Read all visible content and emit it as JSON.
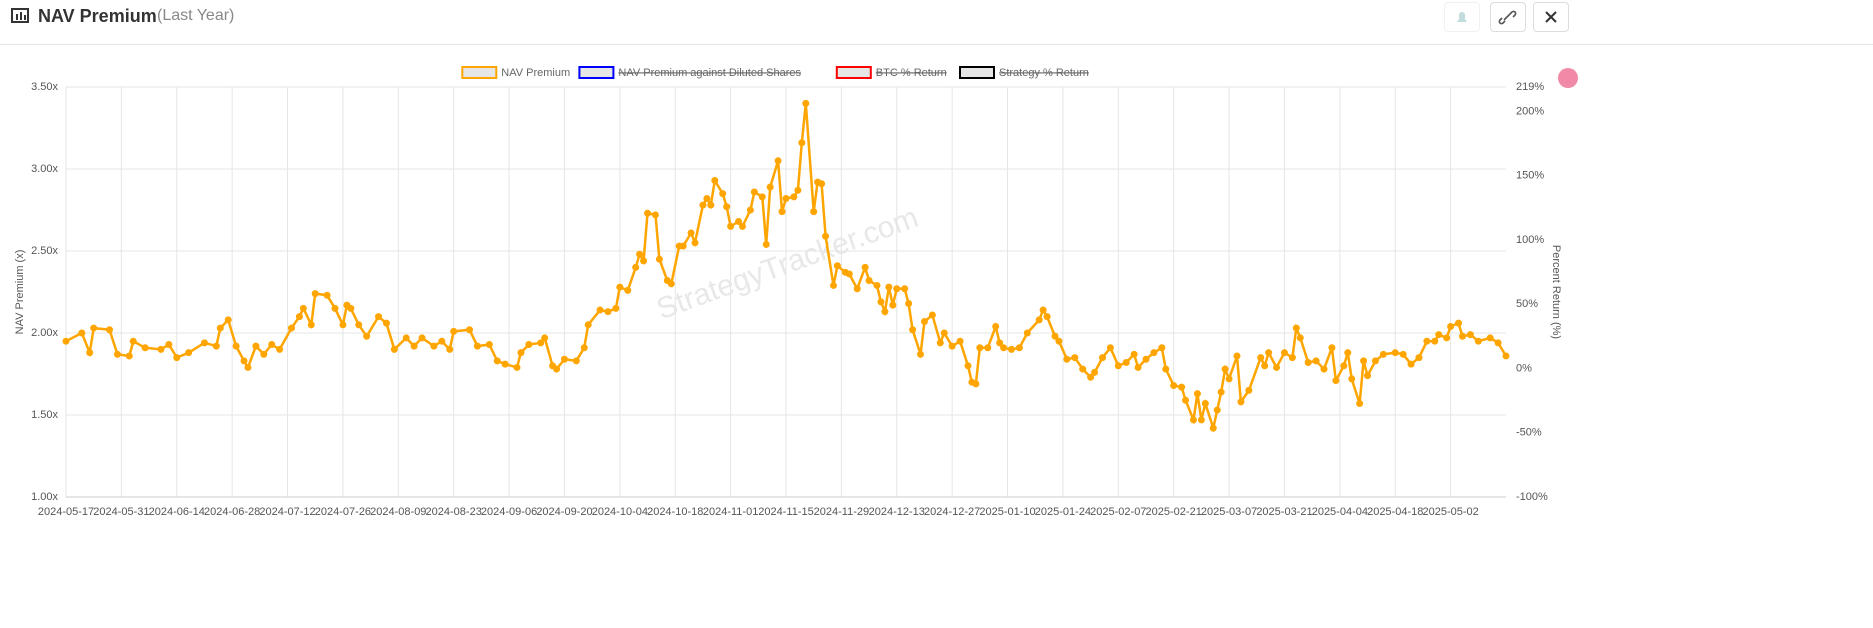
{
  "header": {
    "title": "NAV Premium",
    "subtitle": "(Last Year)"
  },
  "chart_data": {
    "type": "line",
    "watermark": "StrategyTracker.com",
    "y_label": "NAV Premium (x)",
    "y2_label": "Percent Return (%)",
    "xlim": [
      "2024-05-17",
      "2025-05-16"
    ],
    "xticks": [
      "2024-05-17",
      "2024-05-31",
      "2024-06-14",
      "2024-06-28",
      "2024-07-12",
      "2024-07-26",
      "2024-08-09",
      "2024-08-23",
      "2024-09-06",
      "2024-09-20",
      "2024-10-04",
      "2024-10-18",
      "2024-11-01",
      "2024-11-15",
      "2024-11-29",
      "2024-12-13",
      "2024-12-27",
      "2025-01-10",
      "2025-01-24",
      "2025-02-07",
      "2025-02-21",
      "2025-03-07",
      "2025-03-21",
      "2025-04-04",
      "2025-04-18",
      "2025-05-02"
    ],
    "ylim": [
      1,
      3.5
    ],
    "yticks": [
      {
        "value": 1,
        "label": "1.00x"
      },
      {
        "value": 1.5,
        "label": "1.50x"
      },
      {
        "value": 2,
        "label": "2.00x"
      },
      {
        "value": 2.5,
        "label": "2.50x"
      },
      {
        "value": 3,
        "label": "3.00x"
      },
      {
        "value": 3.5,
        "label": "3.50x"
      }
    ],
    "y2lim": [
      -100,
      219
    ],
    "y2ticks": [
      {
        "value": -100,
        "label": "-100%"
      },
      {
        "value": -50,
        "label": "-50%"
      },
      {
        "value": 0,
        "label": "0%"
      },
      {
        "value": 50,
        "label": "50%"
      },
      {
        "value": 100,
        "label": "100%"
      },
      {
        "value": 150,
        "label": "150%"
      },
      {
        "value": 200,
        "label": "200%"
      },
      {
        "value": 219,
        "label": "219%"
      }
    ],
    "grid": true,
    "legend": "top",
    "x": [
      "2024-05-17",
      "2024-05-21",
      "2024-05-23",
      "2024-05-24",
      "2024-05-28",
      "2024-05-30",
      "2024-06-02",
      "2024-06-03",
      "2024-06-06",
      "2024-06-10",
      "2024-06-12",
      "2024-06-14",
      "2024-06-17",
      "2024-06-21",
      "2024-06-24",
      "2024-06-25",
      "2024-06-27",
      "2024-06-29",
      "2024-07-01",
      "2024-07-02",
      "2024-07-04",
      "2024-07-06",
      "2024-07-08",
      "2024-07-10",
      "2024-07-13",
      "2024-07-15",
      "2024-07-16",
      "2024-07-18",
      "2024-07-19",
      "2024-07-22",
      "2024-07-24",
      "2024-07-26",
      "2024-07-27",
      "2024-07-28",
      "2024-07-30",
      "2024-08-01",
      "2024-08-04",
      "2024-08-06",
      "2024-08-08",
      "2024-08-11",
      "2024-08-13",
      "2024-08-15",
      "2024-08-18",
      "2024-08-20",
      "2024-08-22",
      "2024-08-23",
      "2024-08-27",
      "2024-08-29",
      "2024-09-01",
      "2024-09-03",
      "2024-09-05",
      "2024-09-08",
      "2024-09-09",
      "2024-09-11",
      "2024-09-14",
      "2024-09-15",
      "2024-09-17",
      "2024-09-18",
      "2024-09-20",
      "2024-09-23",
      "2024-09-25",
      "2024-09-26",
      "2024-09-29",
      "2024-10-01",
      "2024-10-03",
      "2024-10-04",
      "2024-10-06",
      "2024-10-08",
      "2024-10-09",
      "2024-10-10",
      "2024-10-11",
      "2024-10-13",
      "2024-10-14",
      "2024-10-16",
      "2024-10-17",
      "2024-10-19",
      "2024-10-20",
      "2024-10-22",
      "2024-10-23",
      "2024-10-25",
      "2024-10-26",
      "2024-10-27",
      "2024-10-28",
      "2024-10-30",
      "2024-10-31",
      "2024-11-01",
      "2024-11-03",
      "2024-11-04",
      "2024-11-06",
      "2024-11-07",
      "2024-11-09",
      "2024-11-10",
      "2024-11-11",
      "2024-11-13",
      "2024-11-14",
      "2024-11-15",
      "2024-11-17",
      "2024-11-18",
      "2024-11-19",
      "2024-11-20",
      "2024-11-22",
      "2024-11-23",
      "2024-11-24",
      "2024-11-25",
      "2024-11-27",
      "2024-11-28",
      "2024-11-30",
      "2024-12-01",
      "2024-12-03",
      "2024-12-05",
      "2024-12-06",
      "2024-12-08",
      "2024-12-09",
      "2024-12-10",
      "2024-12-11",
      "2024-12-12",
      "2024-12-13",
      "2024-12-15",
      "2024-12-16",
      "2024-12-17",
      "2024-12-19",
      "2024-12-20",
      "2024-12-22",
      "2024-12-24",
      "2024-12-25",
      "2024-12-27",
      "2024-12-29",
      "2024-12-31",
      "2025-01-01",
      "2025-01-02",
      "2025-01-03",
      "2025-01-05",
      "2025-01-07",
      "2025-01-08",
      "2025-01-09",
      "2025-01-11",
      "2025-01-13",
      "2025-01-15",
      "2025-01-18",
      "2025-01-19",
      "2025-01-20",
      "2025-01-22",
      "2025-01-23",
      "2025-01-25",
      "2025-01-27",
      "2025-01-29",
      "2025-01-31",
      "2025-02-01",
      "2025-02-03",
      "2025-02-05",
      "2025-02-07",
      "2025-02-09",
      "2025-02-11",
      "2025-02-12",
      "2025-02-14",
      "2025-02-16",
      "2025-02-18",
      "2025-02-19",
      "2025-02-21",
      "2025-02-23",
      "2025-02-24",
      "2025-02-26",
      "2025-02-27",
      "2025-02-28",
      "2025-03-01",
      "2025-03-03",
      "2025-03-04",
      "2025-03-05",
      "2025-03-06",
      "2025-03-07",
      "2025-03-09",
      "2025-03-10",
      "2025-03-12",
      "2025-03-15",
      "2025-03-16",
      "2025-03-17",
      "2025-03-19",
      "2025-03-21",
      "2025-03-23",
      "2025-03-24",
      "2025-03-25",
      "2025-03-27",
      "2025-03-29",
      "2025-03-31",
      "2025-04-02",
      "2025-04-03",
      "2025-04-05",
      "2025-04-06",
      "2025-04-07",
      "2025-04-09",
      "2025-04-10",
      "2025-04-11",
      "2025-04-13",
      "2025-04-15",
      "2025-04-18",
      "2025-04-20",
      "2025-04-22",
      "2025-04-24",
      "2025-04-26",
      "2025-04-28",
      "2025-04-29",
      "2025-05-01",
      "2025-05-02",
      "2025-05-04",
      "2025-05-05",
      "2025-05-07",
      "2025-05-09",
      "2025-05-12",
      "2025-05-14",
      "2025-05-16"
    ],
    "series": [
      {
        "name": "NAV Premium",
        "color": "#ffa500",
        "values": [
          1.95,
          2.0,
          1.88,
          2.03,
          2.02,
          1.87,
          1.86,
          1.95,
          1.91,
          1.9,
          1.93,
          1.85,
          1.88,
          1.94,
          1.92,
          2.03,
          2.08,
          1.92,
          1.83,
          1.79,
          1.92,
          1.87,
          1.93,
          1.9,
          2.03,
          2.1,
          2.15,
          2.05,
          2.24,
          2.23,
          2.15,
          2.05,
          2.17,
          2.15,
          2.05,
          1.98,
          2.1,
          2.06,
          1.9,
          1.97,
          1.92,
          1.97,
          1.92,
          1.95,
          1.9,
          2.01,
          2.02,
          1.92,
          1.93,
          1.83,
          1.81,
          1.79,
          1.88,
          1.93,
          1.94,
          1.97,
          1.8,
          1.78,
          1.84,
          1.83,
          1.91,
          2.05,
          2.14,
          2.13,
          2.15,
          2.28,
          2.26,
          2.4,
          2.48,
          2.44,
          2.73,
          2.72,
          2.45,
          2.32,
          2.3,
          2.53,
          2.53,
          2.61,
          2.55,
          2.78,
          2.82,
          2.78,
          2.93,
          2.85,
          2.77,
          2.65,
          2.68,
          2.65,
          2.75,
          2.86,
          2.83,
          2.54,
          2.89,
          3.05,
          2.74,
          2.82,
          2.83,
          2.87,
          3.16,
          3.4,
          2.74,
          2.92,
          2.91,
          2.59,
          2.29,
          2.41,
          2.37,
          2.36,
          2.27,
          2.4,
          2.32,
          2.29,
          2.19,
          2.13,
          2.28,
          2.17,
          2.27,
          2.27,
          2.18,
          2.02,
          1.87,
          2.07,
          2.11,
          1.94,
          2.0,
          1.92,
          1.95,
          1.8,
          1.7,
          1.69,
          1.91,
          1.91,
          2.04,
          1.94,
          1.91,
          1.9,
          1.91,
          2.0,
          2.08,
          2.14,
          2.1,
          1.98,
          1.95,
          1.84,
          1.85,
          1.78,
          1.73,
          1.76,
          1.85,
          1.91,
          1.8,
          1.82,
          1.87,
          1.79,
          1.84,
          1.88,
          1.91,
          1.78,
          1.68,
          1.67,
          1.59,
          1.47,
          1.63,
          1.47,
          1.57,
          1.42,
          1.53,
          1.64,
          1.78,
          1.72,
          1.86,
          1.58,
          1.65,
          1.85,
          1.8,
          1.88,
          1.79,
          1.88,
          1.85,
          2.03,
          1.97,
          1.82,
          1.83,
          1.78,
          1.91,
          1.71,
          1.8,
          1.88,
          1.72,
          1.57,
          1.83,
          1.74,
          1.83,
          1.87,
          1.88,
          1.87,
          1.81,
          1.85,
          1.95,
          1.95,
          1.99,
          1.97,
          2.04,
          2.06,
          1.98,
          1.99,
          1.95,
          1.97,
          1.94,
          1.86
        ]
      },
      {
        "name": "NAV Premium against Diluted Shares",
        "color": "#0000ff",
        "hidden": true
      },
      {
        "name": "BTC % Return",
        "color": "#ff0000",
        "hidden": true,
        "axis": "y2"
      },
      {
        "name": "Strategy % Return",
        "color": "#000000",
        "hidden": true,
        "axis": "y2"
      }
    ]
  }
}
